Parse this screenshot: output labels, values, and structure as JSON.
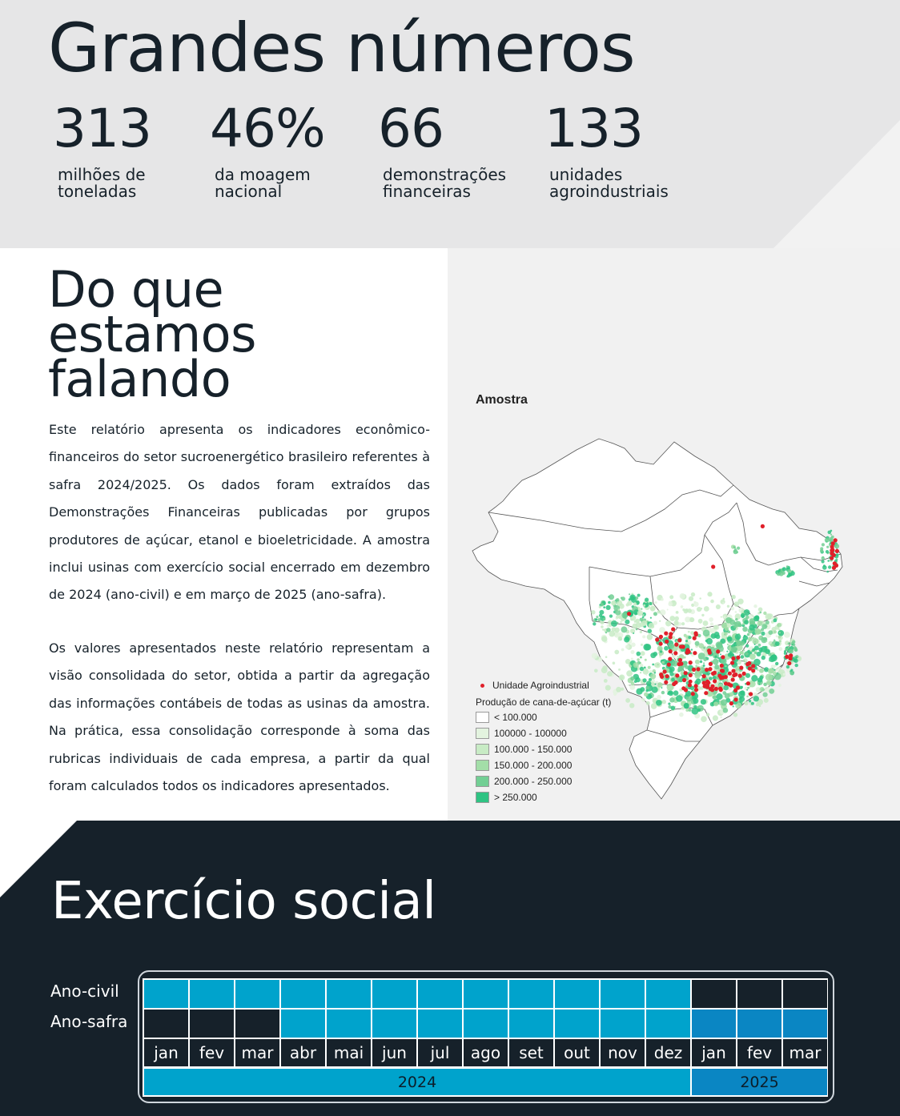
{
  "header": {
    "title": "Grandes números",
    "stats": [
      {
        "number": "313",
        "label": "milhões de toneladas"
      },
      {
        "number": "46%",
        "label": "da moagem nacional"
      },
      {
        "number": "66",
        "label": "demonstrações financeiras"
      },
      {
        "number": "133",
        "label": "unidades agroindustriais"
      }
    ]
  },
  "about": {
    "title_lines": [
      "Do que",
      "estamos",
      "falando"
    ],
    "paragraph1": "Este relatório apresenta os indicadores econômico-financeiros do setor sucroenergético brasileiro referentes à safra 2024/2025. Os dados foram extraídos das Demonstrações Financeiras publicadas por grupos produtores de açúcar, etanol e bioeletricidade. A amostra inclui usinas com exercício social encerrado em dezembro de 2024 (ano-civil) e em março de 2025 (ano-safra).",
    "paragraph2": "Os valores apresentados neste relatório representam a visão consolidada do setor, obtida a partir da agregação das informações contábeis de todas as usinas da amostra. Na prática, essa consolidação corresponde à soma das rubricas individuais de cada empresa, a partir da qual foram calculados todos os indicadores apresentados."
  },
  "map": {
    "title": "Amostra",
    "dot_legend": "Unidade Agroindustrial",
    "legend_title": "Produção de cana-de-açúcar (t)",
    "legend_items": [
      {
        "label": "< 100.000",
        "color": "#ffffff"
      },
      {
        "label": "100000 - 100000",
        "color": "#e3f3df"
      },
      {
        "label": "100.000 - 150.000",
        "color": "#c8ebc5"
      },
      {
        "label": "150.000 - 200.000",
        "color": "#a3dea8"
      },
      {
        "label": "200.000 - 250.000",
        "color": "#72cf94"
      },
      {
        "label": "> 250.000",
        "color": "#2fc383"
      }
    ],
    "colors": {
      "dot": "#e0202a",
      "state_fill": "#ffffff",
      "state_stroke": "#555555",
      "panel": "#f1f1f1"
    }
  },
  "exercise": {
    "title": "Exercício social",
    "row_labels": [
      "Ano-civil",
      "Ano-safra"
    ],
    "months": [
      "jan",
      "fev",
      "mar",
      "abr",
      "mai",
      "jun",
      "jul",
      "ago",
      "set",
      "out",
      "nov",
      "dez",
      "jan",
      "fev",
      "mar"
    ],
    "years": [
      "2024",
      "2025"
    ],
    "colors": {
      "active_2024": "#00a3cc",
      "active_2025": "#0a86c3",
      "inactive": "#16212a",
      "background": "#16212a"
    }
  }
}
